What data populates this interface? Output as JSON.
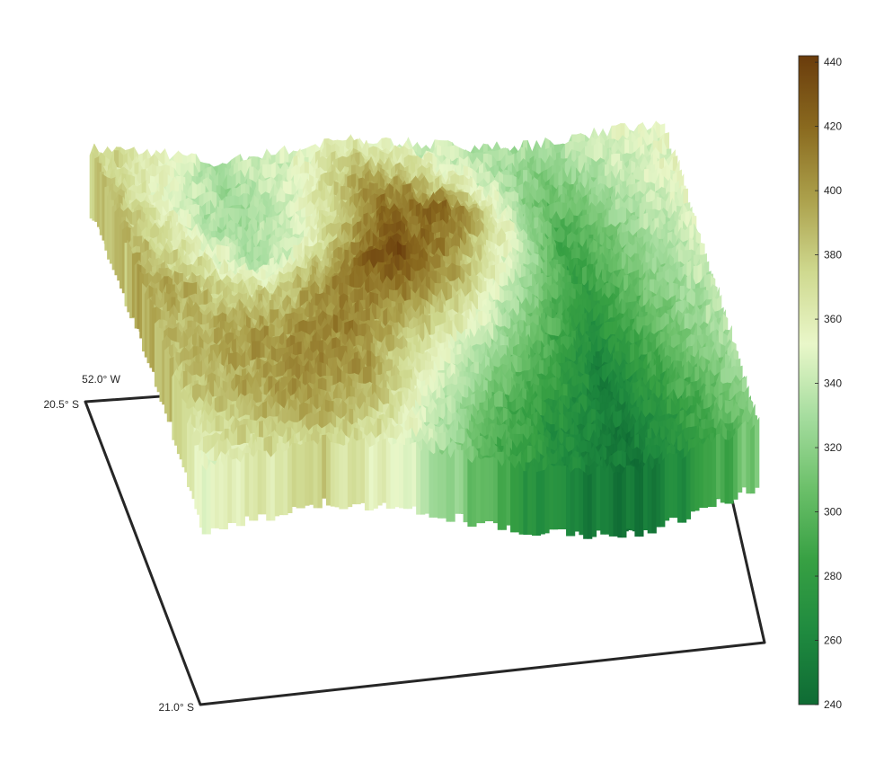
{
  "chart_data": {
    "type": "surface",
    "title": "",
    "colormap": {
      "name": "green-to-brown terrain",
      "stops": [
        "#0f6b34",
        "#1f8a3f",
        "#37a043",
        "#6cc06a",
        "#a6dd9f",
        "#e9f7c9",
        "#cfd98f",
        "#aca14c",
        "#8a6a1f",
        "#6a3c0c"
      ],
      "clim": [
        240,
        442
      ],
      "ticks": [
        "240",
        "260",
        "280",
        "300",
        "320",
        "340",
        "360",
        "380",
        "400",
        "420",
        "440"
      ]
    },
    "axes": {
      "lat_labels": [
        "20.5° S",
        "21.0° S"
      ],
      "lon_labels": [
        "52.0° W"
      ],
      "lat_range": [
        -21.0,
        -20.5
      ],
      "lon_range": [
        -52.0,
        -51.5
      ]
    },
    "surface": {
      "z_range": [
        240,
        442
      ],
      "mean_terrain": [
        [
          375,
          360,
          330,
          345,
          360,
          345,
          330,
          325,
          345,
          350
        ],
        [
          385,
          350,
          320,
          350,
          395,
          375,
          345,
          300,
          330,
          355
        ],
        [
          390,
          365,
          330,
          360,
          415,
          420,
          360,
          280,
          320,
          345
        ],
        [
          395,
          385,
          375,
          405,
          435,
          390,
          320,
          270,
          310,
          340
        ],
        [
          385,
          395,
          400,
          410,
          380,
          335,
          295,
          255,
          300,
          335
        ],
        [
          370,
          390,
          405,
          395,
          345,
          300,
          270,
          250,
          285,
          325
        ],
        [
          350,
          365,
          375,
          355,
          320,
          285,
          260,
          245,
          275,
          315
        ]
      ]
    }
  }
}
